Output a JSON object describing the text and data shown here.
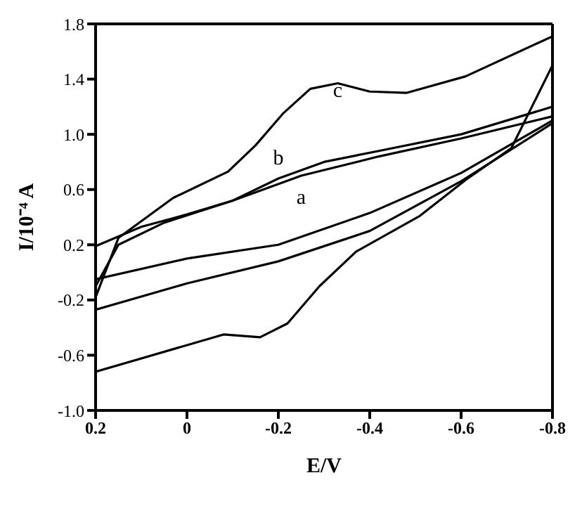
{
  "chart_data": {
    "type": "line",
    "xlabel": "E/V",
    "ylabel": "I/10⁻⁴ A",
    "xlim": [
      0.2,
      -0.8
    ],
    "xticks": [
      0.2,
      0,
      -0.2,
      -0.4,
      -0.6,
      -0.8
    ],
    "ylim": [
      -1.0,
      1.8
    ],
    "yticks": [
      {
        "value": -1,
        "label": "-1.0"
      },
      -0.6,
      -0.2,
      0.2,
      0.6,
      {
        "value": 1,
        "label": "1.0"
      },
      1.4,
      1.8
    ],
    "grid": false,
    "marker": "none",
    "line_style": "solid",
    "series": [
      {
        "name": "a",
        "color": "#000000",
        "x": [
          0.2,
          0.15,
          0.05,
          -0.1,
          -0.25,
          -0.42,
          -0.6,
          -0.8
        ],
        "values": [
          -0.1,
          0.2,
          0.36,
          0.52,
          0.7,
          0.84,
          0.97,
          1.13
        ]
      },
      {
        "color": "#000000",
        "x": [
          0.2,
          0,
          -0.2,
          -0.4,
          -0.6,
          -0.8
        ],
        "values": [
          -0.27,
          -0.08,
          0.08,
          0.3,
          0.66,
          1.08
        ]
      },
      {
        "name": "b",
        "color": "#000000",
        "x": [
          0.2,
          0.1,
          0,
          -0.1,
          -0.2,
          -0.3,
          -0.42,
          -0.6,
          -0.8
        ],
        "values": [
          0.19,
          0.33,
          0.42,
          0.52,
          0.68,
          0.8,
          0.88,
          1.0,
          1.2
        ]
      },
      {
        "color": "#000000",
        "x": [
          0.2,
          0,
          -0.2,
          -0.4,
          -0.6,
          -0.8
        ],
        "values": [
          -0.05,
          0.1,
          0.2,
          0.43,
          0.72,
          1.1
        ]
      },
      {
        "name": "c",
        "color": "#000000",
        "x": [
          0.2,
          0.15,
          0.03,
          -0.09,
          -0.15,
          -0.21,
          -0.27,
          -0.33,
          -0.4,
          -0.48,
          -0.61,
          -0.8
        ],
        "values": [
          -0.18,
          0.25,
          0.54,
          0.73,
          0.92,
          1.15,
          1.33,
          1.37,
          1.31,
          1.3,
          1.42,
          1.71
        ]
      },
      {
        "color": "#000000",
        "x": [
          0.2,
          -0.08,
          -0.16,
          -0.22,
          -0.29,
          -0.37,
          -0.51,
          -0.61,
          -0.71,
          -0.8
        ],
        "values": [
          -0.72,
          -0.45,
          -0.47,
          -0.37,
          -0.1,
          0.15,
          0.41,
          0.67,
          0.9,
          1.5
        ]
      }
    ]
  }
}
